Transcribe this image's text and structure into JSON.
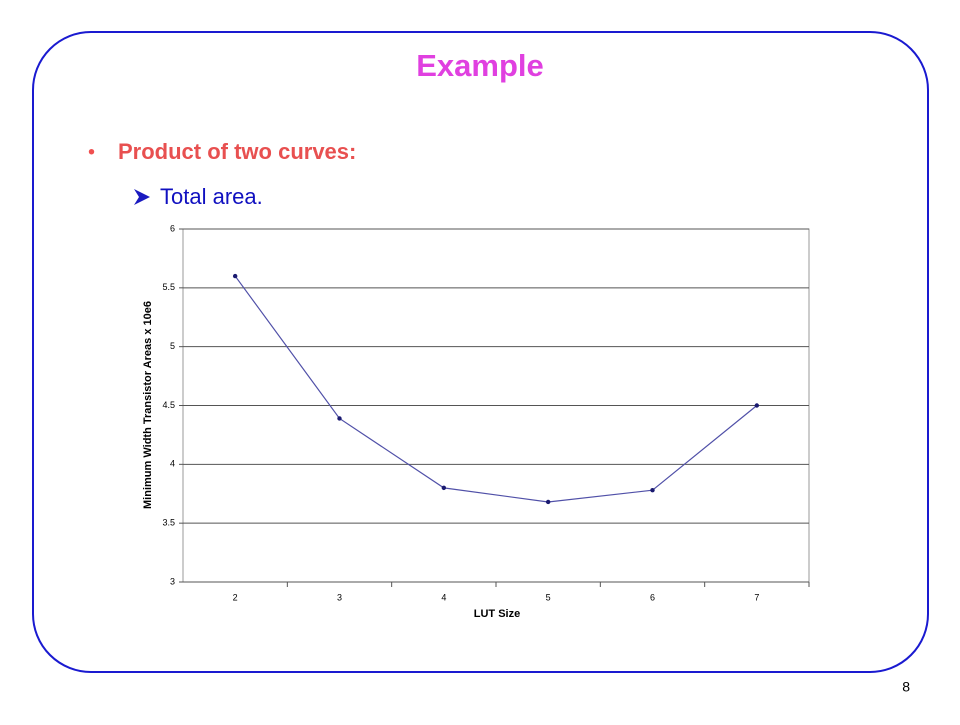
{
  "slide": {
    "title": "Example",
    "bullet": "Product of two curves:",
    "sub_bullet": "Total area.",
    "page_number": "8"
  },
  "chart_data": {
    "type": "line",
    "x_label": "LUT Size",
    "y_label": "Minimum Width Transistor Areas x 10e6",
    "categories": [
      "2",
      "3",
      "4",
      "5",
      "6",
      "7"
    ],
    "series": [
      {
        "name": "Total area",
        "color": "#5050a8",
        "marker_color": "#1a1a70",
        "values": [
          5.6,
          4.39,
          3.8,
          3.68,
          3.78,
          4.5
        ]
      }
    ],
    "ylim": [
      3,
      6
    ],
    "yticks": [
      3,
      3.5,
      4,
      4.5,
      5,
      5.5,
      6
    ],
    "grid": true
  }
}
